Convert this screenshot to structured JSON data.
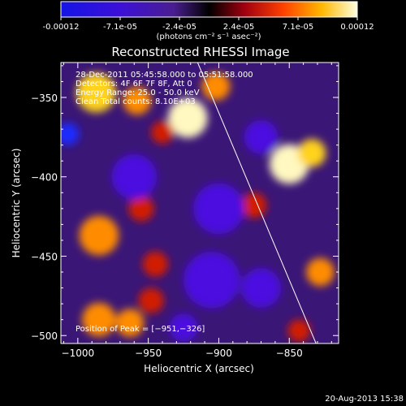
{
  "colorbar": {
    "tick_labels": [
      "-0.00012",
      "-7.1e-05",
      "-2.4e-05",
      "2.4e-05",
      "7.1e-05",
      "0.00012"
    ],
    "unit_label": "(photons cm⁻² s⁻¹ asec⁻²)",
    "range": [
      -0.00012,
      0.00012
    ]
  },
  "chart_data": {
    "type": "heatmap",
    "title": "Reconstructed RHESSI Image",
    "xlabel": "Heliocentric X (arcsec)",
    "ylabel": "Heliocentric Y (arcsec)",
    "xlim": [
      -1012,
      -815
    ],
    "ylim": [
      -505,
      -328
    ],
    "x_ticks": [
      -1000,
      -950,
      -900,
      -850
    ],
    "y_ticks": [
      -350,
      -400,
      -450,
      -500
    ],
    "x_tick_labels": [
      "−1000",
      "−950",
      "−900",
      "−850"
    ],
    "y_tick_labels": [
      "−350",
      "−400",
      "−450",
      "−500"
    ],
    "info_lines": [
      "28-Dec-2011 05:45:58.000 to 05:51:58.000",
      "Detectors: 4F 6F 7F 8F, Att 0",
      "Energy Range: 25.0 - 50.0 keV",
      "Clean    Total counts: 8.10E+03"
    ],
    "peak_label": "Position of Peak = [−951,−326]",
    "peak_position": [
      -951,
      -326
    ],
    "limb_line": [
      [
        -915,
        -328
      ],
      [
        -831,
        -505
      ]
    ],
    "blobs": [
      {
        "x": -987,
        "y": -347,
        "r": 14,
        "v": 0.85
      },
      {
        "x": -958,
        "y": -352,
        "r": 10,
        "v": 0.6
      },
      {
        "x": -922,
        "y": -363,
        "r": 14,
        "v": 0.95
      },
      {
        "x": -902,
        "y": -343,
        "r": 10,
        "v": 0.7
      },
      {
        "x": -850,
        "y": -392,
        "r": 14,
        "v": 1.0
      },
      {
        "x": -834,
        "y": -385,
        "r": 10,
        "v": 0.8
      },
      {
        "x": -875,
        "y": -418,
        "r": 9,
        "v": 0.5
      },
      {
        "x": -985,
        "y": -437,
        "r": 14,
        "v": 0.75
      },
      {
        "x": -955,
        "y": -420,
        "r": 9,
        "v": 0.5
      },
      {
        "x": -945,
        "y": -455,
        "r": 9,
        "v": 0.5
      },
      {
        "x": -948,
        "y": -478,
        "r": 9,
        "v": 0.55
      },
      {
        "x": -828,
        "y": -460,
        "r": 10,
        "v": 0.65
      },
      {
        "x": -985,
        "y": -490,
        "r": 12,
        "v": 0.75
      },
      {
        "x": -963,
        "y": -492,
        "r": 10,
        "v": 0.7
      },
      {
        "x": -940,
        "y": -372,
        "r": 8,
        "v": 0.4
      },
      {
        "x": -843,
        "y": -497,
        "r": 8,
        "v": 0.4
      },
      {
        "x": -1007,
        "y": -373,
        "r": 8,
        "v": -0.9
      },
      {
        "x": -900,
        "y": -420,
        "r": 18,
        "v": -0.25
      },
      {
        "x": -905,
        "y": -465,
        "r": 20,
        "v": -0.3
      },
      {
        "x": -960,
        "y": -400,
        "r": 16,
        "v": -0.25
      },
      {
        "x": -870,
        "y": -470,
        "r": 14,
        "v": -0.25
      },
      {
        "x": -925,
        "y": -495,
        "r": 10,
        "v": -0.35
      },
      {
        "x": -870,
        "y": -375,
        "r": 12,
        "v": -0.2
      }
    ]
  },
  "footer_date": "20-Aug-2013 15:38"
}
